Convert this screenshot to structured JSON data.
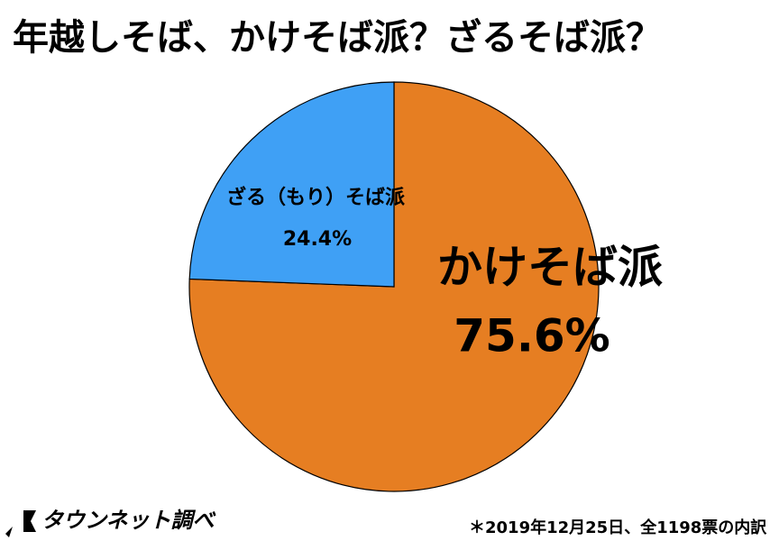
{
  "chart_data": {
    "type": "pie",
    "title": "年越しそば、かけそば派？ざるそば派？",
    "categories": [
      "かけそば派",
      "ざる（もり）そば派"
    ],
    "values": [
      75.6,
      24.4
    ],
    "value_labels": [
      "75.6%",
      "24.4%"
    ],
    "colors": [
      "#e67e22",
      "#3fa0f5"
    ],
    "source": "タウンネット調べ",
    "note": "＊2019年12月25日、全1198票の内訳"
  }
}
